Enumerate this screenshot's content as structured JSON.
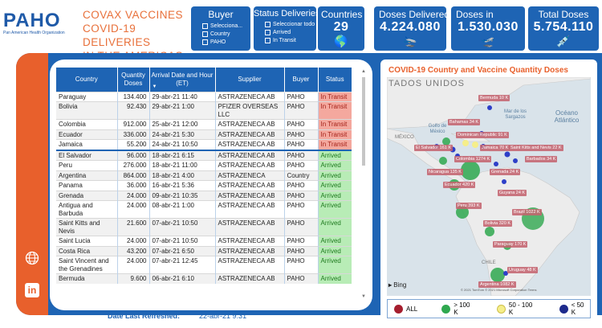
{
  "logo": {
    "name": "PAHO",
    "subtitle": "Pan American Health Organization"
  },
  "title": {
    "line1": "COVAX VACCINES",
    "line2": "COVID-19 DELIVERIES",
    "line3": "IN THE AMERICAS"
  },
  "filters": {
    "buyer": {
      "label": "Buyer",
      "options": [
        "Selecciona...",
        "Country",
        "PAHO"
      ]
    },
    "status": {
      "label": "Status Deliveries",
      "options": [
        "Seleccionar todo",
        "Arrived",
        "In Transit"
      ]
    }
  },
  "kpis": [
    {
      "label": "Countries",
      "value": "29",
      "icon": "globe-icon",
      "glyph": "🌎"
    },
    {
      "label": "Doses Delivered",
      "value": "4.224.080",
      "icon": "plane-landing-icon",
      "glyph": "🛬"
    },
    {
      "label": "Doses in",
      "value": "1.530.030",
      "icon": "plane-takeoff-icon",
      "glyph": "🛫"
    },
    {
      "label": "Total Doses",
      "value": "5.754.110",
      "icon": "syringe-icon",
      "glyph": "💉"
    }
  ],
  "table": {
    "headers": [
      "Country",
      "Quantity Doses",
      "Arrival Date and Hour (ET)",
      "Supplier",
      "Buyer",
      "Status"
    ],
    "rows": [
      {
        "country": "Paraguay",
        "qty": "134.400",
        "date": "29-abr-21 11:40",
        "supplier": "ASTRAZENECA AB",
        "buyer": "PAHO",
        "status": "In Transit"
      },
      {
        "country": "Bolivia",
        "qty": "92.430",
        "date": "29-abr-21 1:00",
        "supplier": "PFIZER OVERSEAS LLC",
        "buyer": "PAHO",
        "status": "In Transit"
      },
      {
        "country": "Colombia",
        "qty": "912.000",
        "date": "25-abr-21 12:00",
        "supplier": "ASTRAZENECA AB",
        "buyer": "PAHO",
        "status": "In Transit"
      },
      {
        "country": "Ecuador",
        "qty": "336.000",
        "date": "24-abr-21 5:30",
        "supplier": "ASTRAZENECA AB",
        "buyer": "PAHO",
        "status": "In Transit"
      },
      {
        "country": "Jamaica",
        "qty": "55.200",
        "date": "24-abr-21 10:50",
        "supplier": "ASTRAZENECA AB",
        "buyer": "PAHO",
        "status": "In Transit"
      },
      {
        "country": "El Salvador",
        "qty": "96.000",
        "date": "18-abr-21 6:15",
        "supplier": "ASTRAZENECA AB",
        "buyer": "PAHO",
        "status": "Arrived"
      },
      {
        "country": "Peru",
        "qty": "276.000",
        "date": "18-abr-21 11:00",
        "supplier": "ASTRAZENECA AB",
        "buyer": "PAHO",
        "status": "Arrived"
      },
      {
        "country": "Argentina",
        "qty": "864.000",
        "date": "18-abr-21 4:00",
        "supplier": "ASTRAZENECA",
        "buyer": "Country",
        "status": "Arrived"
      },
      {
        "country": "Panama",
        "qty": "36.000",
        "date": "16-abr-21 5:36",
        "supplier": "ASTRAZENECA AB",
        "buyer": "PAHO",
        "status": "Arrived"
      },
      {
        "country": "Grenada",
        "qty": "24.000",
        "date": "09-abr-21 10:35",
        "supplier": "ASTRAZENECA AB",
        "buyer": "PAHO",
        "status": "Arrived"
      },
      {
        "country": "Antigua and Barbuda",
        "qty": "24.000",
        "date": "08-abr-21 1:00",
        "supplier": "ASTRAZENECA AB",
        "buyer": "PAHO",
        "status": "Arrived"
      },
      {
        "country": "Saint Kitts and Nevis",
        "qty": "21.600",
        "date": "07-abr-21 10:50",
        "supplier": "ASTRAZENECA AB",
        "buyer": "PAHO",
        "status": "Arrived"
      },
      {
        "country": "Saint Lucia",
        "qty": "24.000",
        "date": "07-abr-21 10:50",
        "supplier": "ASTRAZENECA AB",
        "buyer": "PAHO",
        "status": "Arrived"
      },
      {
        "country": "Costa Rica",
        "qty": "43.200",
        "date": "07-abr-21 6:50",
        "supplier": "ASTRAZENECA AB",
        "buyer": "PAHO",
        "status": "Arrived"
      },
      {
        "country": "Saint Vincent and the Grenadines",
        "qty": "24.000",
        "date": "07-abr-21 12:45",
        "supplier": "ASTRAZENECA AB",
        "buyer": "PAHO",
        "status": "Arrived"
      },
      {
        "country": "Bermuda",
        "qty": "9.600",
        "date": "06-abr-21 6:10",
        "supplier": "ASTRAZENECA AB",
        "buyer": "PAHO",
        "status": "Arrived"
      }
    ]
  },
  "refresh": {
    "label": "Date Last Refreshed:",
    "value": "22-abr-21 9:31"
  },
  "map": {
    "title": "COVID-19 Country and Vaccine Quantity Doses",
    "geo_labels": [
      "TADOS UNIDOS",
      "Golfo de México",
      "MÉXICO",
      "Mar de los Sargazos",
      "Océano Atlántico",
      "CHILE"
    ],
    "bing_label": "Bing",
    "copyright": "© 2021 TomTom © 2021 Microsoft Corporation Terms",
    "country_labels": [
      "Bermuda 10 K",
      "Bahamas 34 K",
      "Dominican Republic 91 K",
      "El Salvador 161 K",
      "Jamaica 70 K",
      "Saint Kitts and Nevis 22 K",
      "Barbados 34 K",
      "Colombia 1274 K",
      "Nicaragua 135 K",
      "Grenada 24 K",
      "Ecuador 420 K",
      "Guyana 24 K",
      "Peru 393 K",
      "Brazil 1022 K",
      "Bolivia 320 K",
      "Paraguay 170 K",
      "Uruguay 48 K",
      "Argentina 1082 K"
    ],
    "legend": [
      {
        "label": "ALL",
        "color": "#a51e2e"
      },
      {
        "label": "> 100 K",
        "color": "#2fa84f"
      },
      {
        "label": "50 - 100 K",
        "color": "#f5ee8a"
      },
      {
        "label": "< 50 K",
        "color": "#1d2a8c"
      }
    ]
  }
}
